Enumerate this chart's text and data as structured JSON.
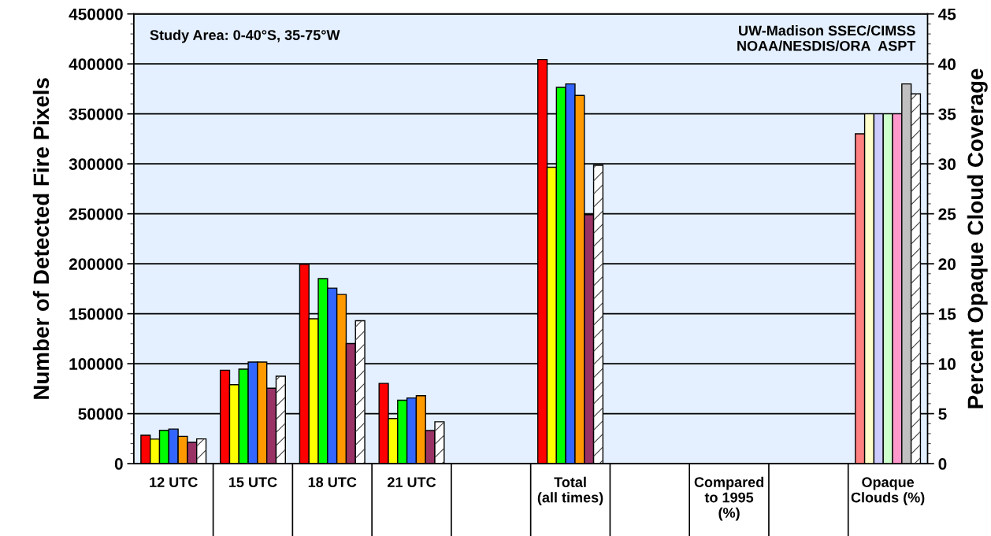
{
  "chart_data": {
    "type": "bar",
    "categories": [
      "12 UTC",
      "15 UTC",
      "18 UTC",
      "21 UTC",
      null,
      "Total\n(all times)",
      null,
      "Compared\nto 1995\n(%)",
      null,
      "Opaque\nClouds (%)"
    ],
    "series": [
      {
        "color": "#ff0000",
        "values": [
          28400,
          93500,
          199400,
          80300,
          null,
          404400,
          null,
          null,
          null,
          null
        ]
      },
      {
        "color": "#ffff00",
        "values": [
          24600,
          79000,
          145000,
          45100,
          null,
          296600,
          null,
          null,
          null,
          null
        ]
      },
      {
        "color": "#00ff00",
        "values": [
          33300,
          94600,
          185100,
          63400,
          null,
          376500,
          null,
          null,
          null,
          null
        ]
      },
      {
        "color": "#3366ff",
        "values": [
          34600,
          101600,
          175600,
          65700,
          null,
          380000,
          null,
          null,
          null,
          null
        ]
      },
      {
        "color": "#ff9900",
        "values": [
          27300,
          101600,
          169300,
          68000,
          null,
          368400,
          null,
          null,
          null,
          null
        ]
      },
      {
        "color": "#993366",
        "values": [
          21300,
          75500,
          120200,
          33100,
          null,
          249100,
          null,
          null,
          null,
          null
        ]
      },
      {
        "color": "#ffffff",
        "values": [
          24800,
          87500,
          143000,
          41900,
          null,
          298500,
          null,
          null,
          null,
          null
        ]
      },
      {
        "color": "#ff8080",
        "axis": "y2",
        "values": [
          null,
          null,
          null,
          null,
          null,
          null,
          null,
          null,
          null,
          33
        ]
      },
      {
        "color": "#ffffcc",
        "axis": "y2",
        "values": [
          null,
          null,
          null,
          null,
          null,
          null,
          null,
          null,
          null,
          35
        ]
      },
      {
        "color": "#ccccff",
        "axis": "y2",
        "values": [
          null,
          null,
          null,
          null,
          null,
          null,
          null,
          null,
          null,
          35
        ]
      },
      {
        "color": "#ccffcc",
        "axis": "y2",
        "values": [
          null,
          null,
          null,
          null,
          null,
          null,
          null,
          null,
          null,
          35
        ]
      },
      {
        "color": "#ff99cc",
        "axis": "y2",
        "values": [
          null,
          null,
          null,
          null,
          null,
          null,
          null,
          null,
          null,
          35
        ]
      },
      {
        "color": "#c0c0c0",
        "axis": "y2",
        "values": [
          null,
          null,
          null,
          null,
          null,
          null,
          null,
          null,
          null,
          38
        ]
      },
      {
        "color": "#ffffff",
        "axis": "y2",
        "values": [
          null,
          null,
          null,
          null,
          null,
          null,
          null,
          null,
          null,
          37
        ]
      }
    ],
    "ylabel": "Number of Detected Fire Pixels",
    "y2label": "Percent Opaque Cloud Coverage",
    "ylim": [
      0,
      450000
    ],
    "yticks": [
      0,
      50000,
      100000,
      150000,
      200000,
      250000,
      300000,
      350000,
      400000,
      450000
    ],
    "y2lim": [
      0,
      45
    ],
    "y2ticks": [
      0,
      5,
      10,
      15,
      20,
      25,
      30,
      35,
      40,
      45
    ],
    "grid": "y",
    "annotations": [
      "Study Area: 0-40°S, 35-75°W",
      "UW-Madison SSEC/CIMSS\nNOAA/NESDIS/ORA  ASPT"
    ]
  }
}
